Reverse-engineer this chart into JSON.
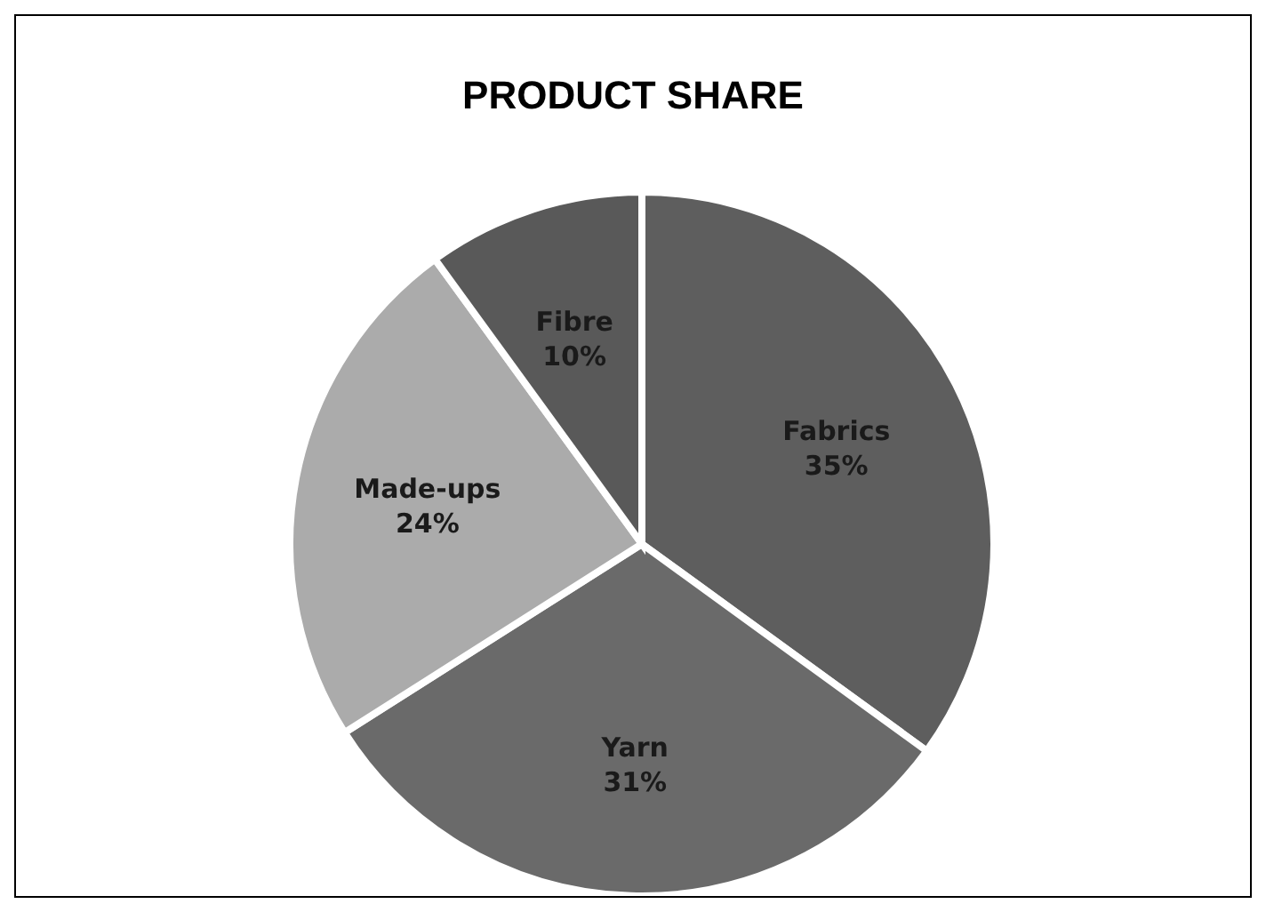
{
  "chart_data": {
    "type": "pie",
    "title": "PRODUCT SHARE",
    "categories": [
      "Fabrics",
      "Yarn",
      "Made-ups",
      "Fibre"
    ],
    "values": [
      35,
      31,
      24,
      10
    ],
    "colors": [
      "#5e5e5e",
      "#6a6a6a",
      "#ababab",
      "#595959"
    ],
    "value_labels": [
      "35%",
      "31%",
      "24%",
      "10%"
    ],
    "legend": false
  }
}
